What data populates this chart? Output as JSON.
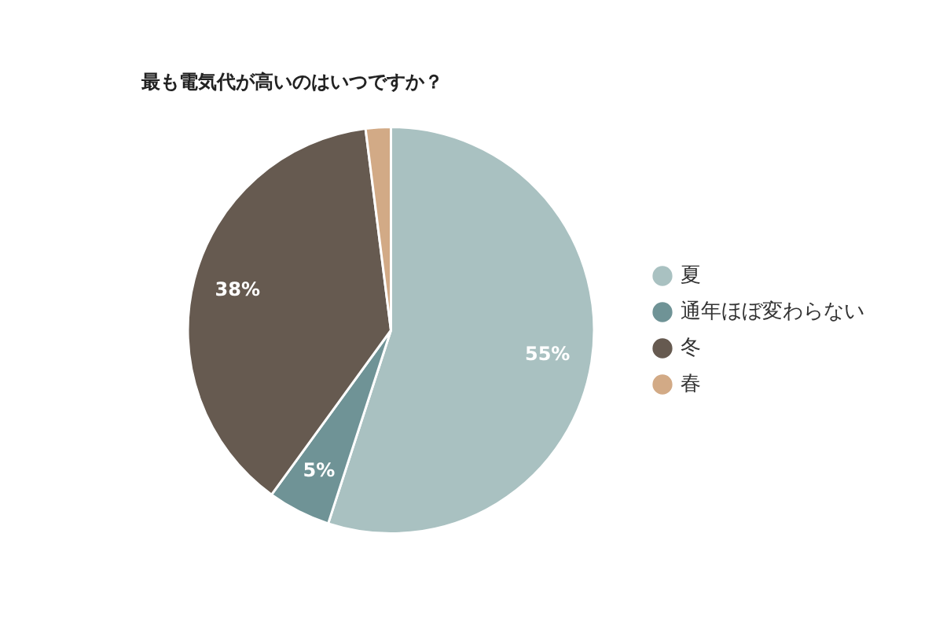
{
  "chart_data": {
    "type": "pie",
    "title": "最も電気代が高いのはいつですか？",
    "categories": [
      "夏",
      "通年ほぼ変わらない",
      "冬",
      "春"
    ],
    "values": [
      55,
      5,
      38,
      2
    ],
    "colors": [
      "#a9c1c1",
      "#6f9396",
      "#665a50",
      "#d2aa86"
    ],
    "value_labels": [
      "55%",
      "5%",
      "38%",
      null
    ],
    "legend": "right"
  }
}
